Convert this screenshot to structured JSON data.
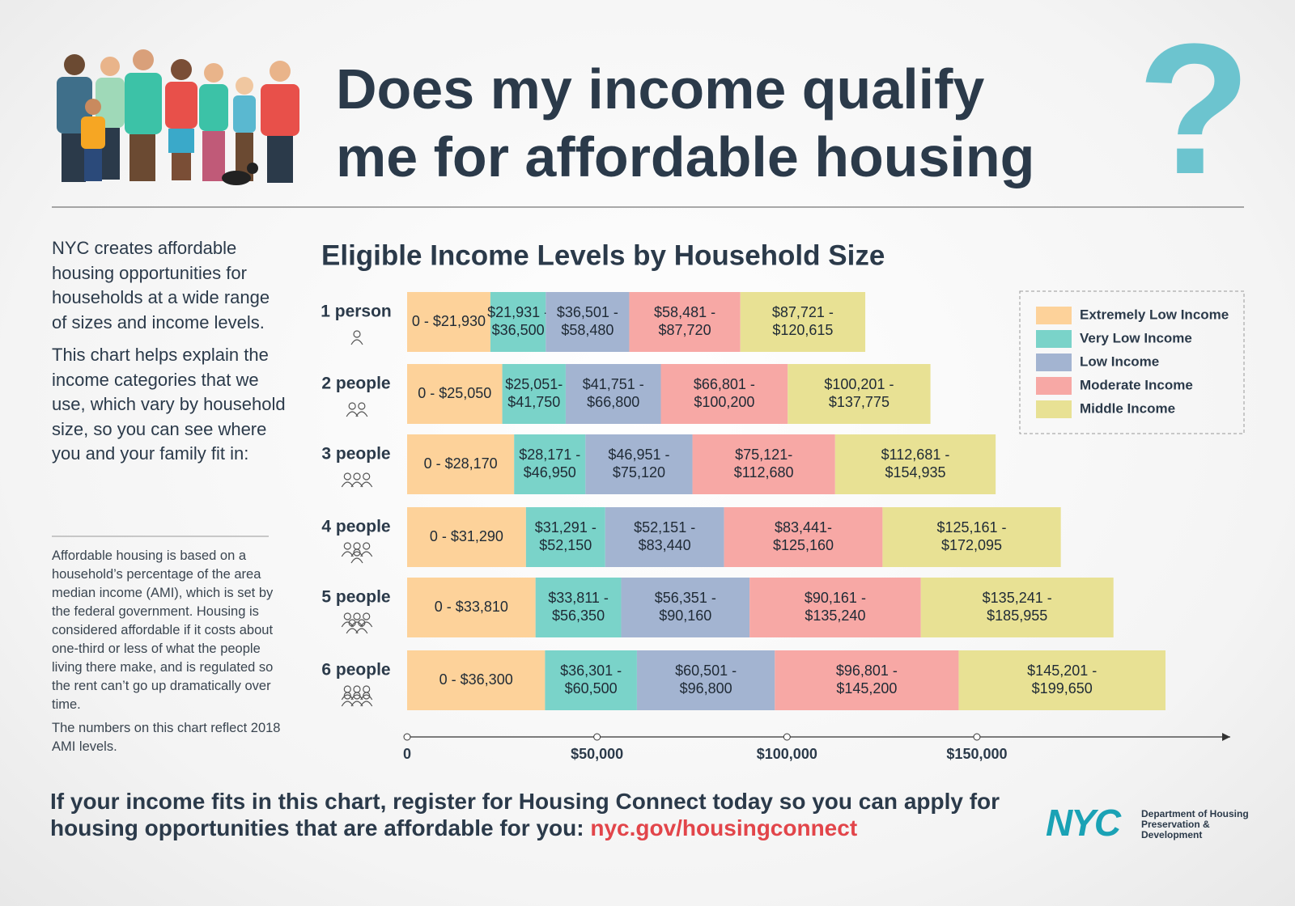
{
  "header": {
    "title_lines": [
      "Does my income qualify",
      "me for affordable housing"
    ],
    "question_mark": "?"
  },
  "intro": [
    "NYC creates affordable housing opportunities for households at a wide range of sizes and income levels.",
    "This chart helps explain the income categories that we use, which vary by household size, so you can see where you and your family fit in:"
  ],
  "note": [
    "Affordable housing is based on a household’s percentage of the area median income (AMI), which is set by the federal government. Housing is considered affordable if it costs about one-third or less of what the people living there make, and is regulated so the rent can’t go up dramatically over time.",
    "The numbers on this chart reflect 2018 AMI levels."
  ],
  "footer": {
    "text": "If your income fits in this chart, register for Housing Connect today so you can apply for housing opportunities that are affordable for you:",
    "link": "nyc.gov/housingconnect"
  },
  "logo": {
    "mark": "NYC",
    "agency": "Department of Housing Preservation & Development"
  },
  "chart_data": {
    "type": "bar",
    "orientation": "horizontal",
    "title": "Eligible Income Levels by Household Size",
    "categories": [
      "1 person",
      "2 people",
      "3 people",
      "4 people",
      "5 people",
      "6 people"
    ],
    "series": [
      {
        "name": "Extremely Low Income",
        "color": "#fdd29a",
        "low": [
          0,
          0,
          0,
          0,
          0,
          0
        ],
        "high": [
          21930,
          25050,
          28170,
          31290,
          33810,
          36300
        ],
        "value_labels": [
          [
            "0 - $21,930"
          ],
          [
            "0 - $25,050"
          ],
          [
            "0 - $28,170"
          ],
          [
            "0 - $31,290"
          ],
          [
            "0 - $33,810"
          ],
          [
            "0 - $36,300"
          ]
        ]
      },
      {
        "name": "Very Low Income",
        "color": "#7ad3c9",
        "low": [
          21931,
          25051,
          28171,
          31291,
          33811,
          36301
        ],
        "high": [
          36500,
          41750,
          46950,
          52150,
          56350,
          60500
        ],
        "value_labels": [
          [
            "$21,931 -",
            "$36,500"
          ],
          [
            "$25,051-",
            "$41,750"
          ],
          [
            "$28,171 -",
            "$46,950"
          ],
          [
            "$31,291 -",
            "$52,150"
          ],
          [
            "$33,811 -",
            "$56,350"
          ],
          [
            "$36,301 -",
            "$60,500"
          ]
        ]
      },
      {
        "name": "Low Income",
        "color": "#a3b4d1",
        "low": [
          36501,
          41751,
          46951,
          52151,
          56351,
          60501
        ],
        "high": [
          58480,
          66800,
          75120,
          83440,
          90160,
          96800
        ],
        "value_labels": [
          [
            "$36,501 -",
            "$58,480"
          ],
          [
            "$41,751 -",
            "$66,800"
          ],
          [
            "$46,951 -",
            "$75,120"
          ],
          [
            "$52,151 -",
            "$83,440"
          ],
          [
            "$56,351 -",
            "$90,160"
          ],
          [
            "$60,501 -",
            "$96,800"
          ]
        ]
      },
      {
        "name": "Moderate Income",
        "color": "#f7a8a5",
        "low": [
          58481,
          66801,
          75121,
          83441,
          90161,
          96801
        ],
        "high": [
          87720,
          100200,
          112680,
          125160,
          135240,
          145200
        ],
        "value_labels": [
          [
            "$58,481 -",
            "$87,720"
          ],
          [
            "$66,801 -",
            "$100,200"
          ],
          [
            "$75,121-",
            "$112,680"
          ],
          [
            "$83,441-",
            "$125,160"
          ],
          [
            "$90,161 -",
            "$135,240"
          ],
          [
            "$96,801 -",
            "$145,200"
          ]
        ]
      },
      {
        "name": "Middle Income",
        "color": "#e8e194",
        "low": [
          87721,
          100201,
          112681,
          125161,
          135241,
          145201
        ],
        "high": [
          120615,
          137775,
          154935,
          172095,
          185955,
          199650
        ],
        "value_labels": [
          [
            "$87,721 -",
            "$120,615"
          ],
          [
            "$100,201 -",
            "$137,775"
          ],
          [
            "$112,681 -",
            "$154,935"
          ],
          [
            "$125,161 -",
            "$172,095"
          ],
          [
            "$135,241 -",
            "$185,955"
          ],
          [
            "$145,201 -",
            "$199,650"
          ]
        ]
      }
    ],
    "xlim": [
      0,
      216700
    ],
    "xticks": [
      0,
      {
        "value": 50000,
        "label": "$50,000"
      },
      {
        "value": 100000,
        "label": "$100,000"
      },
      {
        "value": 150000,
        "label": "$150,000"
      }
    ],
    "legend": "top-right"
  }
}
